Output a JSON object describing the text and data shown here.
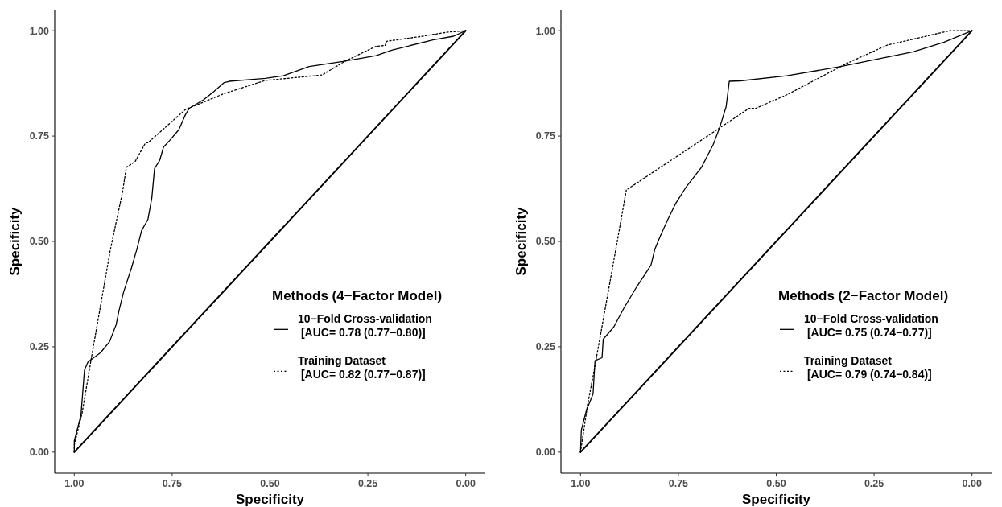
{
  "chart_data": [
    {
      "type": "line",
      "xlabel": "Specificity",
      "ylabel": "Specificity",
      "xlim": [
        1.05,
        -0.05
      ],
      "ylim": [
        -0.05,
        1.05
      ],
      "xticks": [
        {
          "value": 1,
          "label": "1.00"
        },
        {
          "value": 0.75,
          "label": "0.75"
        },
        {
          "value": 0.5,
          "label": "0.50"
        },
        {
          "value": 0.25,
          "label": "0.25"
        },
        {
          "value": 0,
          "label": "0.00"
        }
      ],
      "yticks": [
        {
          "value": 0,
          "label": "0.00"
        },
        {
          "value": 0.25,
          "label": "0.25"
        },
        {
          "value": 0.5,
          "label": "0.50"
        },
        {
          "value": 0.75,
          "label": "0.75"
        },
        {
          "value": 1,
          "label": "1.00"
        }
      ],
      "legend": "bottom right",
      "legend_title": "Methods (4−Factor Model)",
      "grid": false,
      "series": [
        {
          "name": "10−Fold Cross-validation\n [AUC= 0.78 (0.77−0.80)]",
          "color": "#000000",
          "line_style": "solid",
          "x": [
            1,
            1,
            0.983,
            0.974,
            0.965,
            0.933,
            0.91,
            0.893,
            0.886,
            0.874,
            0.854,
            0.84,
            0.828,
            0.812,
            0.802,
            0.795,
            0.782,
            0.772,
            0.756,
            0.733,
            0.716,
            0.706,
            0.67,
            0.644,
            0.617,
            0.604,
            0.551,
            0.512,
            0.466,
            0.4,
            0.314,
            0.229,
            0.189,
            0.084,
            0.031,
            0
          ],
          "values": [
            0,
            0.027,
            0.087,
            0.195,
            0.214,
            0.236,
            0.262,
            0.303,
            0.335,
            0.38,
            0.437,
            0.482,
            0.526,
            0.552,
            0.603,
            0.673,
            0.692,
            0.724,
            0.74,
            0.765,
            0.801,
            0.816,
            0.836,
            0.855,
            0.877,
            0.88,
            0.884,
            0.887,
            0.893,
            0.915,
            0.927,
            0.941,
            0.954,
            0.978,
            0.987,
            1
          ]
        },
        {
          "name": "Training Dataset\n [AUC= 0.82 (0.77−0.87)]",
          "color": "#000000",
          "line_style": "dotted",
          "x": [
            1,
            1,
            0.98,
            0.957,
            0.908,
            0.877,
            0.867,
            0.845,
            0.818,
            0.812,
            0.716,
            0.617,
            0.512,
            0.367,
            0.308,
            0.229,
            0.206,
            0.202,
            0.11,
            0.044,
            0
          ],
          "values": [
            0,
            0.017,
            0.093,
            0.22,
            0.48,
            0.616,
            0.676,
            0.689,
            0.734,
            0.734,
            0.813,
            0.851,
            0.882,
            0.895,
            0.928,
            0.963,
            0.965,
            0.975,
            0.987,
            0.997,
            1
          ]
        },
        {
          "color": "#000000",
          "line_style": "solid",
          "x": [
            1,
            0
          ],
          "values": [
            0,
            1
          ]
        }
      ]
    },
    {
      "type": "line",
      "xlabel": "Specificity",
      "ylabel": "Specificity",
      "xlim": [
        1.05,
        -0.05
      ],
      "ylim": [
        -0.05,
        1.05
      ],
      "xticks": [
        {
          "value": 1,
          "label": "1.00"
        },
        {
          "value": 0.75,
          "label": "0.75"
        },
        {
          "value": 0.5,
          "label": "0.50"
        },
        {
          "value": 0.25,
          "label": "0.25"
        },
        {
          "value": 0,
          "label": "0.00"
        }
      ],
      "yticks": [
        {
          "value": 0,
          "label": "0.00"
        },
        {
          "value": 0.25,
          "label": "0.25"
        },
        {
          "value": 0.5,
          "label": "0.50"
        },
        {
          "value": 0.75,
          "label": "0.75"
        },
        {
          "value": 1,
          "label": "1.00"
        }
      ],
      "legend": "bottom right",
      "legend_title": "Methods (2−Factor Model)",
      "grid": false,
      "series": [
        {
          "name": "10−Fold Cross-validation\n [AUC= 0.75 (0.74−0.77)]",
          "color": "#000000",
          "line_style": "solid",
          "x": [
            1,
            0.998,
            0.985,
            0.968,
            0.963,
            0.945,
            0.942,
            0.915,
            0.889,
            0.856,
            0.836,
            0.82,
            0.81,
            0.797,
            0.777,
            0.757,
            0.731,
            0.691,
            0.661,
            0.645,
            0.628,
            0.62,
            0.592,
            0.473,
            0.335,
            0.15,
            0.071,
            0
          ],
          "values": [
            0,
            0.052,
            0.099,
            0.138,
            0.217,
            0.224,
            0.268,
            0.297,
            0.342,
            0.393,
            0.421,
            0.444,
            0.482,
            0.511,
            0.552,
            0.59,
            0.628,
            0.676,
            0.73,
            0.769,
            0.82,
            0.88,
            0.881,
            0.893,
            0.915,
            0.95,
            0.973,
            1
          ]
        },
        {
          "name": "Training Dataset\n [AUC= 0.79 (0.74−0.84)]",
          "color": "#000000",
          "line_style": "dotted",
          "x": [
            1,
            0.982,
            0.965,
            0.906,
            0.883,
            0.569,
            0.552,
            0.473,
            0.321,
            0.216,
            0.057,
            0
          ],
          "values": [
            0,
            0.112,
            0.195,
            0.501,
            0.622,
            0.816,
            0.816,
            0.848,
            0.922,
            0.966,
            1,
            1
          ]
        },
        {
          "color": "#000000",
          "line_style": "solid",
          "x": [
            1,
            0
          ],
          "values": [
            0,
            1
          ]
        }
      ]
    }
  ]
}
